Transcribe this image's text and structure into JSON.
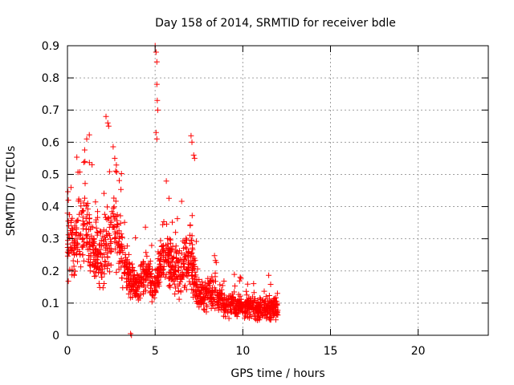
{
  "chart_data": {
    "type": "scatter",
    "title": "Day 158 of 2014, SRMTID for receiver bdle",
    "xlabel": "GPS time / hours",
    "ylabel": "SRMTID / TECUs",
    "xlim": [
      0,
      24
    ],
    "ylim": [
      0,
      0.9
    ],
    "xticks": [
      0,
      5,
      10,
      15,
      20
    ],
    "yticks": [
      0,
      0.1,
      0.2,
      0.3,
      0.4,
      0.5,
      0.6,
      0.7,
      0.8,
      0.9
    ],
    "xtick_labels": [
      "0",
      "5",
      "10",
      "15",
      "20"
    ],
    "ytick_labels": [
      "0",
      "0.1",
      "0.2",
      "0.3",
      "0.4",
      "0.5",
      "0.6",
      "0.7",
      "0.8",
      "0.9"
    ],
    "grid": true,
    "marker": "+",
    "color": "#ff0000",
    "envelope_hours": [
      0.0,
      0.5,
      1.0,
      1.5,
      2.0,
      2.5,
      3.0,
      3.5,
      4.0,
      4.5,
      5.0,
      5.5,
      6.0,
      6.5,
      7.0,
      7.5,
      8.0,
      8.5,
      9.0,
      9.5,
      10.0,
      10.5,
      11.0,
      11.5,
      12.0
    ],
    "envelope_median": [
      0.26,
      0.3,
      0.33,
      0.28,
      0.25,
      0.32,
      0.28,
      0.18,
      0.15,
      0.2,
      0.15,
      0.26,
      0.22,
      0.2,
      0.25,
      0.12,
      0.13,
      0.12,
      0.09,
      0.09,
      0.09,
      0.09,
      0.08,
      0.08,
      0.08
    ],
    "envelope_spread": [
      0.1,
      0.12,
      0.14,
      0.13,
      0.12,
      0.15,
      0.12,
      0.06,
      0.05,
      0.06,
      0.06,
      0.1,
      0.08,
      0.08,
      0.1,
      0.05,
      0.06,
      0.05,
      0.04,
      0.04,
      0.04,
      0.04,
      0.04,
      0.04,
      0.04
    ],
    "spikes": [
      {
        "x": 1.0,
        "y": 0.54
      },
      {
        "x": 1.1,
        "y": 0.61
      },
      {
        "x": 1.4,
        "y": 0.53
      },
      {
        "x": 2.2,
        "y": 0.68
      },
      {
        "x": 2.3,
        "y": 0.66
      },
      {
        "x": 2.35,
        "y": 0.65
      },
      {
        "x": 2.7,
        "y": 0.55
      },
      {
        "x": 5.0,
        "y": 0.9
      },
      {
        "x": 5.05,
        "y": 0.88
      },
      {
        "x": 5.1,
        "y": 0.85
      },
      {
        "x": 5.1,
        "y": 0.78
      },
      {
        "x": 5.12,
        "y": 0.73
      },
      {
        "x": 5.15,
        "y": 0.7
      },
      {
        "x": 5.05,
        "y": 0.63
      },
      {
        "x": 5.1,
        "y": 0.61
      },
      {
        "x": 7.05,
        "y": 0.62
      },
      {
        "x": 7.1,
        "y": 0.6
      },
      {
        "x": 7.2,
        "y": 0.56
      },
      {
        "x": 7.25,
        "y": 0.55
      },
      {
        "x": 0.05,
        "y": 0.42
      },
      {
        "x": 3.65,
        "y": 0.0
      },
      {
        "x": 3.6,
        "y": 0.005
      }
    ]
  }
}
